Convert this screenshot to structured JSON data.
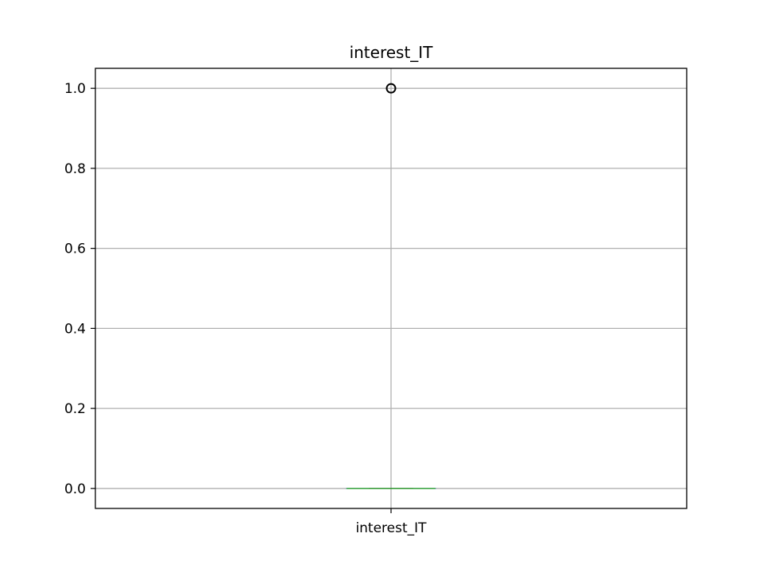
{
  "chart_data": {
    "type": "boxplot",
    "title": "interest_IT",
    "xlabel": "",
    "ylabel": "",
    "categories": [
      "interest_IT"
    ],
    "series": [
      {
        "name": "interest_IT",
        "whisker_low": 0.0,
        "q1": 0.0,
        "median": 0.0,
        "q3": 0.0,
        "whisker_high": 0.0,
        "outliers": [
          1.0
        ]
      }
    ],
    "y_ticks": [
      "0.0",
      "0.2",
      "0.4",
      "0.6",
      "0.8",
      "1.0"
    ],
    "ylim": [
      -0.05,
      1.05
    ],
    "grid": true,
    "colors": {
      "box": "#1f77b4",
      "median": "#2ca02c",
      "outlier": "#000000",
      "grid": "#b0b0b0",
      "frame": "#000000"
    }
  }
}
